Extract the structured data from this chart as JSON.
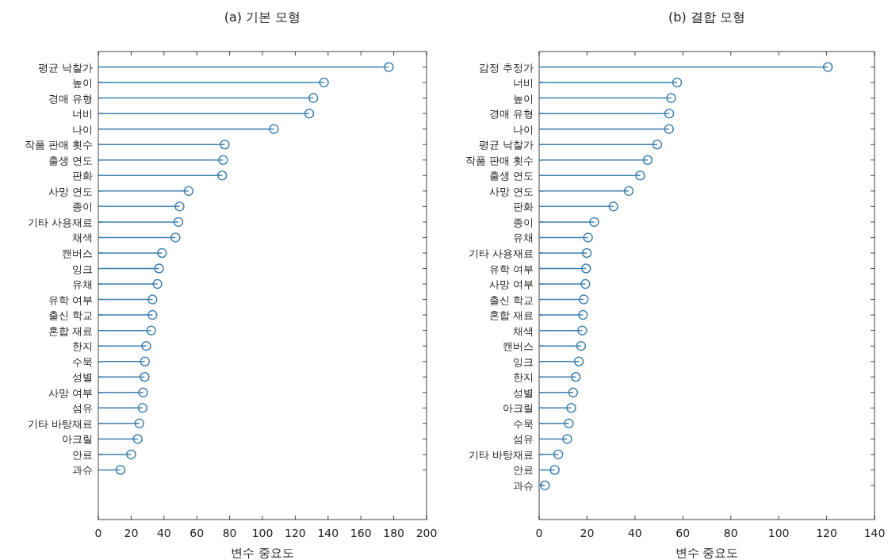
{
  "chart_data": [
    {
      "type": "lollipop",
      "orientation": "horizontal",
      "title": "(a) 기본 모형",
      "xlabel": "변수 중요도",
      "color": "#3d7fb0",
      "marker": "circle",
      "categories": [
        "평균 낙찰가",
        "높이",
        "경매 유형",
        "너비",
        "나이",
        "작품 판매 횟수",
        "출생 연도",
        "판화",
        "사망 연도",
        "종이",
        "기타 사용재료",
        "채색",
        "캔버스",
        "잉크",
        "유채",
        "유학 여부",
        "출신 학교",
        "혼합 재료",
        "한지",
        "수묵",
        "성별",
        "사망 여부",
        "섬유",
        "기타 바탕재료",
        "아크릴",
        "안료",
        "과슈"
      ],
      "values": [
        177,
        137.5,
        131,
        128.5,
        107,
        77,
        76,
        75.5,
        55,
        49.5,
        48.8,
        47,
        38.8,
        37,
        36,
        33,
        33,
        32.2,
        29.2,
        28.4,
        28.2,
        27.3,
        27,
        25,
        24,
        20,
        13.5
      ],
      "xlim": [
        0,
        200
      ],
      "xticks": [
        0,
        20,
        40,
        60,
        80,
        100,
        120,
        140,
        160,
        180,
        200
      ]
    },
    {
      "type": "lollipop",
      "orientation": "horizontal",
      "title": "(b) 결합 모형",
      "xlabel": "변수 중요도",
      "color": "#3d7fb0",
      "marker": "circle",
      "categories": [
        "감정 추정가",
        "너비",
        "높이",
        "경매 유형",
        "나이",
        "평균 낙찰가",
        "작품 판매 횟수",
        "출생 연도",
        "사망 연도",
        "판화",
        "종이",
        "유채",
        "기타 사용재료",
        "유학 여부",
        "사망 여부",
        "출신 학교",
        "혼합 재료",
        "채색",
        "캔버스",
        "잉크",
        "한지",
        "성별",
        "아크릴",
        "수묵",
        "섬유",
        "기타 바탕재료",
        "안료",
        "과슈"
      ],
      "values": [
        120.5,
        57.6,
        55.1,
        54.3,
        54.2,
        49.3,
        45.3,
        42.2,
        37.4,
        31,
        23,
        20.4,
        19.9,
        19.6,
        19.3,
        18.6,
        18.3,
        18,
        17.5,
        16.6,
        15.3,
        14.2,
        13.4,
        12.4,
        11.7,
        8,
        6.5,
        2.4
      ],
      "xlim": [
        0,
        140
      ],
      "xticks": [
        0,
        20,
        40,
        60,
        80,
        100,
        120,
        140
      ]
    }
  ]
}
